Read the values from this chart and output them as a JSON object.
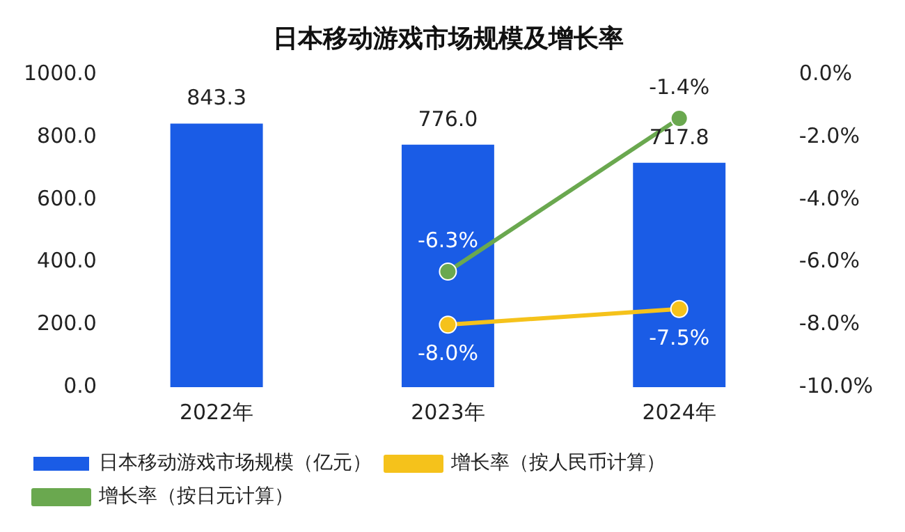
{
  "chart_data": {
    "type": "bar",
    "title": "日本移动游戏市场规模及增长率",
    "categories": [
      "2022年",
      "2023年",
      "2024年"
    ],
    "series": [
      {
        "name": "日本移动游戏市场规模（亿元）",
        "color": "#1a5ce6",
        "values": [
          843.3,
          776.0,
          717.8
        ],
        "value_labels": [
          "843.3",
          "776.0",
          "717.8"
        ]
      },
      {
        "name": "增长率（按人民币计算）",
        "type": "line",
        "axis": "y2",
        "color": "#f5c21b",
        "values": [
          null,
          -8.0,
          -7.5
        ],
        "value_labels": [
          null,
          "-8.0%",
          "-7.5%"
        ]
      },
      {
        "name": "增长率（按日元计算）",
        "type": "line",
        "axis": "y2",
        "color": "#6aa84f",
        "values": [
          null,
          -6.3,
          -1.4
        ],
        "value_labels": [
          null,
          "-6.3%",
          "-1.4%"
        ]
      }
    ],
    "ylim": [
      0,
      1000
    ],
    "yticks": [
      {
        "value": 0,
        "label": "0.0"
      },
      {
        "value": 200,
        "label": "200.0"
      },
      {
        "value": 400,
        "label": "400.0"
      },
      {
        "value": 600,
        "label": "600.0"
      },
      {
        "value": 800,
        "label": "800.0"
      },
      {
        "value": 1000,
        "label": "1000.0"
      }
    ],
    "y2lim": [
      -10,
      0
    ],
    "y2ticks": [
      {
        "value": -10,
        "label": "-10.0%"
      },
      {
        "value": -8,
        "label": "-8.0%"
      },
      {
        "value": -6,
        "label": "-6.0%"
      },
      {
        "value": -4,
        "label": "-4.0%"
      },
      {
        "value": -2,
        "label": "-2.0%"
      },
      {
        "value": 0,
        "label": "0.0%"
      }
    ],
    "grid": false,
    "legend": "bottom",
    "marker": "circle"
  }
}
